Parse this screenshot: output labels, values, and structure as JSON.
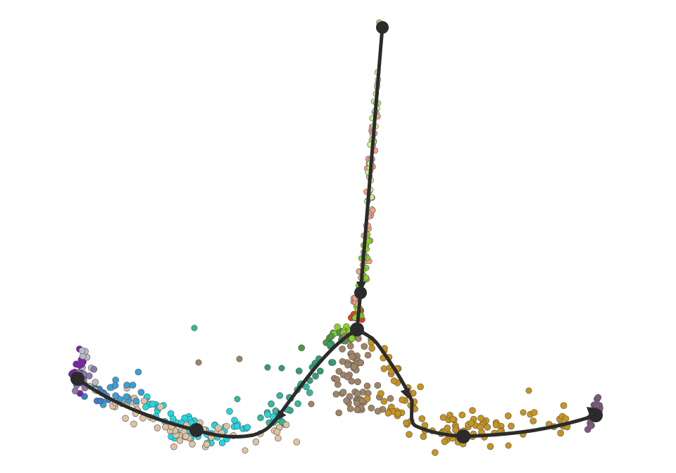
{
  "colors": {
    "background": "#ffffff",
    "trajectory": "#2b2b2b",
    "point_outline": "#555555"
  },
  "clusters": [
    {
      "name": "purple",
      "color": "#7a22a8"
    },
    {
      "name": "lavender",
      "color": "#8a7aa8"
    },
    {
      "name": "grey",
      "color": "#b8bcc4"
    },
    {
      "name": "blue",
      "color": "#3f7fc4"
    },
    {
      "name": "skyblue",
      "color": "#3aa0d8"
    },
    {
      "name": "cyan",
      "color": "#22d8e0"
    },
    {
      "name": "tan",
      "color": "#e0c2a0"
    },
    {
      "name": "teal",
      "color": "#36b89c"
    },
    {
      "name": "seagreen",
      "color": "#2f9f74"
    },
    {
      "name": "green",
      "color": "#4a9a3c"
    },
    {
      "name": "lime",
      "color": "#8ad228"
    },
    {
      "name": "lightlime",
      "color": "#c8f090"
    },
    {
      "name": "salmon",
      "color": "#f0a088"
    },
    {
      "name": "red",
      "color": "#e0401a"
    },
    {
      "name": "brown",
      "color": "#a08466"
    },
    {
      "name": "gold",
      "color": "#c8941e"
    },
    {
      "name": "plum",
      "color": "#7a5a7c"
    }
  ]
}
